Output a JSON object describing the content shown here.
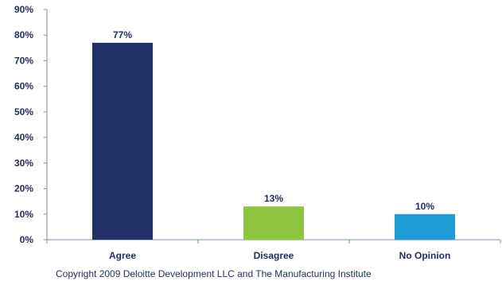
{
  "chart_data": {
    "type": "bar",
    "categories": [
      "Agree",
      "Disagree",
      "No Opinion"
    ],
    "values": [
      77,
      13,
      10
    ],
    "data_labels": [
      "77%",
      "13%",
      "10%"
    ],
    "colors": [
      "#213066",
      "#8dc63f",
      "#1f9bd7"
    ],
    "y_ticks": [
      "0%",
      "10%",
      "20%",
      "30%",
      "40%",
      "50%",
      "60%",
      "70%",
      "80%",
      "90%"
    ],
    "ylim": [
      0,
      90
    ],
    "grid": false,
    "axis_color": "#7f8fa9",
    "text_color": "#1f2d5c"
  },
  "footer": {
    "copyright": "Copyright 2009  Deloitte Development LLC and The Manufacturing Institute"
  }
}
